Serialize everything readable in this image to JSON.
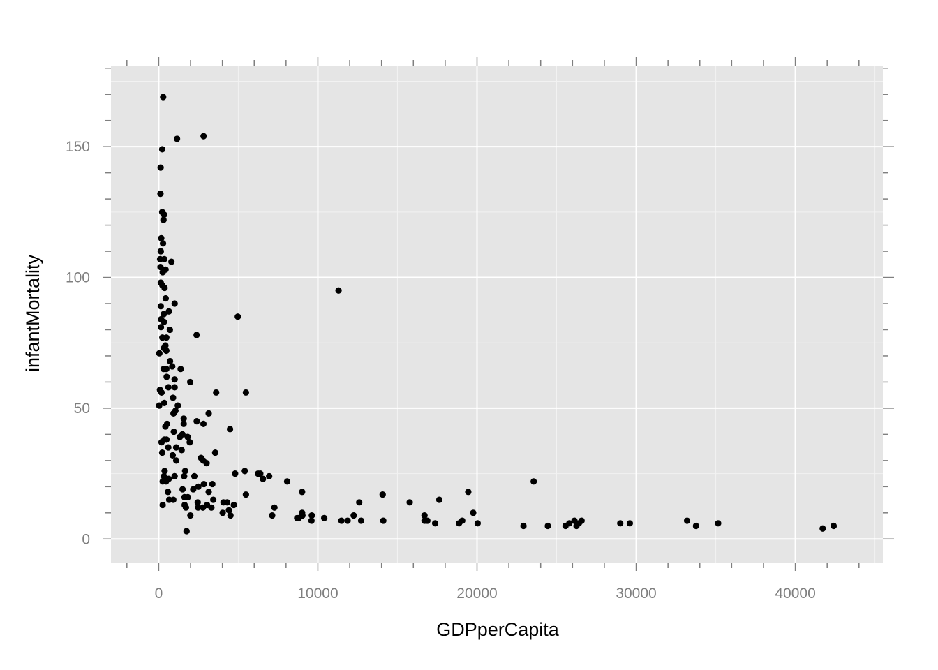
{
  "chart_data": {
    "type": "scatter",
    "title": "",
    "xlabel": "GDPperCapita",
    "ylabel": "infantMortality",
    "xlim": [
      -3000,
      45500
    ],
    "ylim": [
      -9,
      181
    ],
    "x_ticks": [
      0,
      10000,
      20000,
      30000,
      40000
    ],
    "x_tick_labels": [
      "0",
      "10000",
      "20000",
      "30000",
      "40000"
    ],
    "y_ticks": [
      0,
      50,
      100,
      150
    ],
    "y_tick_labels": [
      "0",
      "50",
      "100",
      "150"
    ],
    "grid": true,
    "legend": "none",
    "colors": {
      "panel_background": "#e5e5e5",
      "grid_major": "#ffffff",
      "grid_minor": "#f2f2f2",
      "point": "#000000",
      "tick_mark": "#7f7f7f"
    },
    "points": [
      [
        280,
        169
      ],
      [
        2820,
        154
      ],
      [
        1150,
        153
      ],
      [
        220,
        149
      ],
      [
        120,
        142
      ],
      [
        110,
        132
      ],
      [
        220,
        125
      ],
      [
        340,
        124
      ],
      [
        300,
        122
      ],
      [
        160,
        115
      ],
      [
        270,
        113
      ],
      [
        130,
        110
      ],
      [
        90,
        107
      ],
      [
        350,
        107
      ],
      [
        800,
        106
      ],
      [
        110,
        104
      ],
      [
        430,
        103
      ],
      [
        250,
        102
      ],
      [
        130,
        98
      ],
      [
        230,
        97
      ],
      [
        370,
        96
      ],
      [
        11300,
        95
      ],
      [
        440,
        92
      ],
      [
        1000,
        90
      ],
      [
        130,
        89
      ],
      [
        640,
        87
      ],
      [
        320,
        86
      ],
      [
        150,
        84
      ],
      [
        330,
        83
      ],
      [
        4970,
        85
      ],
      [
        140,
        81
      ],
      [
        700,
        80
      ],
      [
        2380,
        78
      ],
      [
        230,
        77
      ],
      [
        480,
        77
      ],
      [
        420,
        74
      ],
      [
        330,
        73
      ],
      [
        480,
        72
      ],
      [
        40,
        71
      ],
      [
        710,
        68
      ],
      [
        850,
        66
      ],
      [
        310,
        65
      ],
      [
        480,
        65
      ],
      [
        1380,
        65
      ],
      [
        500,
        62
      ],
      [
        1000,
        61
      ],
      [
        1980,
        60
      ],
      [
        80,
        57
      ],
      [
        610,
        58
      ],
      [
        1000,
        58
      ],
      [
        3610,
        56
      ],
      [
        5480,
        56
      ],
      [
        180,
        56
      ],
      [
        900,
        54
      ],
      [
        350,
        52
      ],
      [
        30,
        51
      ],
      [
        1200,
        51
      ],
      [
        3140,
        48
      ],
      [
        1050,
        49
      ],
      [
        930,
        48
      ],
      [
        1570,
        46
      ],
      [
        1570,
        44
      ],
      [
        2390,
        45
      ],
      [
        2810,
        44
      ],
      [
        4480,
        42
      ],
      [
        530,
        44
      ],
      [
        420,
        43
      ],
      [
        950,
        41
      ],
      [
        1490,
        40
      ],
      [
        1330,
        39
      ],
      [
        1820,
        39
      ],
      [
        360,
        38
      ],
      [
        490,
        38
      ],
      [
        180,
        37
      ],
      [
        1950,
        37
      ],
      [
        1100,
        35
      ],
      [
        600,
        35
      ],
      [
        1440,
        34
      ],
      [
        3550,
        33
      ],
      [
        220,
        33
      ],
      [
        880,
        32
      ],
      [
        2660,
        31
      ],
      [
        2800,
        30
      ],
      [
        1100,
        30
      ],
      [
        3010,
        29
      ],
      [
        5410,
        26
      ],
      [
        1660,
        26
      ],
      [
        370,
        26
      ],
      [
        4800,
        25
      ],
      [
        6240,
        25
      ],
      [
        6380,
        25
      ],
      [
        6550,
        23
      ],
      [
        6940,
        24
      ],
      [
        330,
        24
      ],
      [
        1600,
        24
      ],
      [
        2240,
        24
      ],
      [
        1000,
        24
      ],
      [
        630,
        23
      ],
      [
        460,
        22
      ],
      [
        250,
        22
      ],
      [
        8070,
        22
      ],
      [
        23560,
        22
      ],
      [
        3370,
        21
      ],
      [
        2840,
        21
      ],
      [
        2490,
        20
      ],
      [
        2170,
        19
      ],
      [
        1500,
        19
      ],
      [
        580,
        18
      ],
      [
        3140,
        18
      ],
      [
        9010,
        18
      ],
      [
        19450,
        18
      ],
      [
        1620,
        16
      ],
      [
        1830,
        16
      ],
      [
        5480,
        17
      ],
      [
        14070,
        17
      ],
      [
        3430,
        15
      ],
      [
        660,
        15
      ],
      [
        920,
        15
      ],
      [
        17630,
        15
      ],
      [
        4070,
        14
      ],
      [
        4300,
        14
      ],
      [
        15770,
        14
      ],
      [
        2450,
        14
      ],
      [
        1630,
        13
      ],
      [
        4720,
        13
      ],
      [
        12600,
        14
      ],
      [
        250,
        13
      ],
      [
        3040,
        13
      ],
      [
        1710,
        12
      ],
      [
        2470,
        12
      ],
      [
        2780,
        12
      ],
      [
        3310,
        12
      ],
      [
        7270,
        12
      ],
      [
        4020,
        10
      ],
      [
        4410,
        11
      ],
      [
        8800,
        8
      ],
      [
        9010,
        10
      ],
      [
        19760,
        10
      ],
      [
        1990,
        9
      ],
      [
        4510,
        9
      ],
      [
        7130,
        9
      ],
      [
        9030,
        9
      ],
      [
        9620,
        9
      ],
      [
        12250,
        9
      ],
      [
        16700,
        9
      ],
      [
        10400,
        8
      ],
      [
        8700,
        8
      ],
      [
        9600,
        7
      ],
      [
        11480,
        7
      ],
      [
        11870,
        7
      ],
      [
        12720,
        7
      ],
      [
        14110,
        7
      ],
      [
        16700,
        7
      ],
      [
        16880,
        7
      ],
      [
        17370,
        6
      ],
      [
        18870,
        6
      ],
      [
        19070,
        7
      ],
      [
        20040,
        6
      ],
      [
        26120,
        7
      ],
      [
        26570,
        7
      ],
      [
        33200,
        7
      ],
      [
        22920,
        5
      ],
      [
        24450,
        5
      ],
      [
        25560,
        5
      ],
      [
        25800,
        6
      ],
      [
        26250,
        5
      ],
      [
        26400,
        6
      ],
      [
        29000,
        6
      ],
      [
        29600,
        6
      ],
      [
        33760,
        5
      ],
      [
        35150,
        6
      ],
      [
        41720,
        4
      ],
      [
        42410,
        5
      ],
      [
        1750,
        3
      ]
    ]
  }
}
